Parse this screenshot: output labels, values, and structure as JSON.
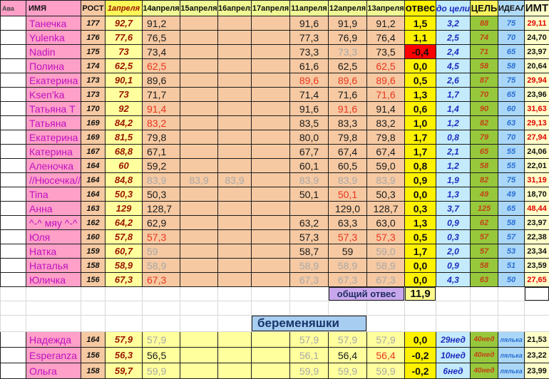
{
  "colors": {
    "pink": "#ffa0c8",
    "peach": "#f6c9a2",
    "yellow": "#fff200",
    "paleYellow": "#ffff9e",
    "lightBlue": "#c3ebfb",
    "green": "#97c83c",
    "idealBlue": "#aad7f7",
    "bmiBg": "#ffffc9",
    "purple": "#c9a7ec",
    "pregBlue": "#a7cdf0",
    "valueRed": "#e8351f",
    "valueGray": "#a8a8a8",
    "alertRed": "#ff0000"
  },
  "header": {
    "cols": [
      "Ава",
      "ИМЯ",
      "РОСТ",
      "1апреля",
      "14апреля",
      "15апреля",
      "16апреля",
      "17апреля",
      "11апреля",
      "12апреля",
      "13апреля",
      "отвес",
      "до цели",
      "ЦЕЛЬ",
      "ИДЕАЛ",
      "ИМТ"
    ]
  },
  "rows": [
    {
      "name": "Танечка",
      "height": "177",
      "apr1": "92,7",
      "dates": [
        [
          "91,2",
          "k"
        ],
        null,
        null,
        null,
        [
          "91,6",
          "k"
        ],
        [
          "91,9",
          "k"
        ],
        [
          "91,2",
          "k"
        ]
      ],
      "otves": "1,5",
      "alert": false,
      "to_goal": "3,2",
      "goal": "88",
      "ideal": "75",
      "bmi": "29,11",
      "bmi_red": true,
      "avatar": [
        "#b9ab92",
        "#7a7464"
      ]
    },
    {
      "name": "Yulenka",
      "height": "176",
      "apr1": "77,6",
      "dates": [
        [
          "76,5",
          "k"
        ],
        null,
        null,
        null,
        [
          "77,3",
          "k"
        ],
        [
          "76,9",
          "k"
        ],
        [
          "76,4",
          "k"
        ]
      ],
      "otves": "1,1",
      "alert": false,
      "to_goal": "2,5",
      "goal": "74",
      "ideal": "70",
      "bmi": "24,70",
      "bmi_red": false,
      "avatar": [
        "#e8b7c2",
        "#c22b3a"
      ]
    },
    {
      "name": "Nadin",
      "height": "175",
      "apr1": "73",
      "dates": [
        [
          "73,4",
          "k"
        ],
        null,
        null,
        null,
        [
          "73,3",
          "k"
        ],
        [
          "73,3",
          "g"
        ],
        [
          "73,5",
          "k"
        ]
      ],
      "otves": "-0,4",
      "alert": true,
      "to_goal": "2,4",
      "goal": "71",
      "ideal": "65",
      "bmi": "23,97",
      "bmi_red": false,
      "avatar": [
        "#9ec4e3",
        "#e8eef5"
      ]
    },
    {
      "name": "Полина",
      "height": "174",
      "apr1": "62,5",
      "dates": [
        [
          "62,5",
          "r"
        ],
        null,
        null,
        null,
        [
          "61,6",
          "k"
        ],
        [
          "62,5",
          "k"
        ],
        [
          "62,5",
          "r"
        ]
      ],
      "otves": "0,0",
      "alert": false,
      "to_goal": "4,5",
      "goal": "58",
      "ideal": "58",
      "bmi": "20,64",
      "bmi_red": false,
      "avatar": [
        "#7a1020",
        "#2b0d12"
      ]
    },
    {
      "name": "Екатерина",
      "height": "173",
      "apr1": "90,1",
      "dates": [
        [
          "89,6",
          "k"
        ],
        null,
        null,
        null,
        [
          "89,6",
          "r"
        ],
        [
          "89,6",
          "r"
        ],
        [
          "89,6",
          "r"
        ]
      ],
      "otves": "0,5",
      "alert": false,
      "to_goal": "2,6",
      "goal": "87",
      "ideal": "75",
      "bmi": "29,94",
      "bmi_red": true,
      "avatar": [
        "#f0cdbd",
        "#d8a090"
      ]
    },
    {
      "name": "Ksen'ka",
      "height": "173",
      "apr1": "73",
      "dates": [
        [
          "71,7",
          "k"
        ],
        null,
        null,
        null,
        [
          "71,4",
          "k"
        ],
        [
          "71,6",
          "k"
        ],
        [
          "71,6",
          "r"
        ]
      ],
      "otves": "1,3",
      "alert": false,
      "to_goal": "1,7",
      "goal": "70",
      "ideal": "65",
      "bmi": "23,96",
      "bmi_red": false,
      "avatar": [
        "#4a3a38",
        "#1c1416"
      ]
    },
    {
      "name": "Татьяна Т",
      "height": "170",
      "apr1": "92",
      "dates": [
        [
          "91,4",
          "r"
        ],
        null,
        null,
        null,
        [
          "91,6",
          "k"
        ],
        [
          "91,6",
          "r"
        ],
        [
          "91,4",
          "k"
        ]
      ],
      "otves": "0,6",
      "alert": false,
      "to_goal": "1,4",
      "goal": "90",
      "ideal": "60",
      "bmi": "31,63",
      "bmi_red": true,
      "avatar": [
        "#a33b2a",
        "#d98a6a"
      ]
    },
    {
      "name": "Татьяна",
      "height": "169",
      "apr1": "84,2",
      "dates": [
        [
          "83,2",
          "r"
        ],
        null,
        null,
        null,
        [
          "83,5",
          "k"
        ],
        [
          "83,3",
          "k"
        ],
        [
          "83,2",
          "k"
        ]
      ],
      "otves": "1,0",
      "alert": false,
      "to_goal": "1,2",
      "goal": "82",
      "ideal": "63",
      "bmi": "29,13",
      "bmi_red": true,
      "avatar": [
        "#d9d9d9",
        "#b0884a"
      ]
    },
    {
      "name": "Екатерина",
      "height": "169",
      "apr1": "81,5",
      "dates": [
        [
          "79,8",
          "k"
        ],
        null,
        null,
        null,
        [
          "80,0",
          "k"
        ],
        [
          "79,8",
          "k"
        ],
        [
          "79,8",
          "k"
        ]
      ],
      "otves": "1,7",
      "alert": false,
      "to_goal": "0,8",
      "goal": "79",
      "ideal": "70",
      "bmi": "27,94",
      "bmi_red": true,
      "avatar": [
        "#50555a",
        "#23262a"
      ]
    },
    {
      "name": "Катерина",
      "height": "167",
      "apr1": "68,8",
      "dates": [
        [
          "67,1",
          "k"
        ],
        null,
        null,
        null,
        [
          "67,7",
          "k"
        ],
        [
          "67,4",
          "k"
        ],
        [
          "67,4",
          "k"
        ]
      ],
      "otves": "1,7",
      "alert": false,
      "to_goal": "2,1",
      "goal": "65",
      "ideal": "55",
      "bmi": "24,06",
      "bmi_red": false,
      "avatar": [
        "#c9ccd0",
        "#8c3030"
      ]
    },
    {
      "name": "Аленочка",
      "height": "164",
      "apr1": "60",
      "dates": [
        [
          "59,2",
          "k"
        ],
        null,
        null,
        null,
        [
          "60,1",
          "k"
        ],
        [
          "60,5",
          "k"
        ],
        [
          "59,0",
          "k"
        ]
      ],
      "otves": "0,8",
      "alert": false,
      "to_goal": "1,2",
      "goal": "58",
      "ideal": "55",
      "bmi": "22,01",
      "bmi_red": false,
      "avatar": [
        "#2b2416",
        "#e09a28"
      ]
    },
    {
      "name": "//Нюсечка//",
      "height": "164",
      "apr1": "84,8",
      "dates": [
        [
          "83,9",
          "g"
        ],
        [
          "83,9",
          "g"
        ],
        [
          "83,9",
          "g"
        ],
        null,
        [
          "83,9",
          "g"
        ],
        [
          "83,9",
          "g"
        ],
        [
          "83,9",
          "g"
        ]
      ],
      "otves": "0,9",
      "alert": false,
      "to_goal": "1,9",
      "goal": "82",
      "ideal": "75",
      "bmi": "31,19",
      "bmi_red": true,
      "avatar": [
        "#3a3436",
        "#6e4a50"
      ]
    },
    {
      "name": "Tina",
      "height": "164",
      "apr1": "50,3",
      "dates": [
        [
          "50,3",
          "k"
        ],
        null,
        null,
        null,
        [
          "50,1",
          "k"
        ],
        [
          "50,1",
          "r"
        ],
        [
          "50,3",
          "k"
        ]
      ],
      "otves": "0,0",
      "alert": false,
      "to_goal": "1,3",
      "goal": "49",
      "ideal": "49",
      "bmi": "18,70",
      "bmi_red": false,
      "avatar": [
        "#4a7a6a",
        "#cfe3da"
      ]
    },
    {
      "name": "Анна",
      "height": "163",
      "apr1": "129",
      "dates": [
        [
          "128,7",
          "k"
        ],
        null,
        null,
        null,
        null,
        [
          "129,0",
          "k"
        ],
        [
          "128,7",
          "k"
        ]
      ],
      "otves": "0,3",
      "alert": false,
      "to_goal": "3,7",
      "goal": "125",
      "ideal": "65",
      "bmi": "48,44",
      "bmi_red": true,
      "avatar": [
        "#5a9e4a",
        "#2e6ea8"
      ]
    },
    {
      "name": "^-^ мяу ^-^",
      "height": "162",
      "apr1": "64,2",
      "dates": [
        [
          "62,9",
          "k"
        ],
        null,
        null,
        null,
        [
          "63,2",
          "k"
        ],
        [
          "63,3",
          "k"
        ],
        [
          "63,0",
          "k"
        ]
      ],
      "otves": "1,3",
      "alert": false,
      "to_goal": "0,9",
      "goal": "62",
      "ideal": "58",
      "bmi": "23,97",
      "bmi_red": false,
      "avatar": [
        "#3f6b2e",
        "#1e3a16"
      ]
    },
    {
      "name": "Юля",
      "height": "160",
      "apr1": "57,8",
      "dates": [
        [
          "57,3",
          "r"
        ],
        null,
        null,
        null,
        [
          "57,3",
          "k"
        ],
        [
          "57,3",
          "r"
        ],
        [
          "57,3",
          "r"
        ]
      ],
      "otves": "0,5",
      "alert": false,
      "to_goal": "0,3",
      "goal": "57",
      "ideal": "57",
      "bmi": "22,38",
      "bmi_red": false,
      "avatar": [
        "#b02a1a",
        "#5a1208"
      ]
    },
    {
      "name": "Натка",
      "height": "159",
      "apr1": "60,7",
      "dates": [
        [
          "59",
          "g"
        ],
        null,
        null,
        null,
        [
          "58,7",
          "k"
        ],
        [
          "59",
          "k"
        ],
        [
          "59,0",
          "g"
        ]
      ],
      "otves": "1,7",
      "alert": false,
      "to_goal": "2,0",
      "goal": "57",
      "ideal": "53",
      "bmi": "23,34",
      "bmi_red": false,
      "avatar": [
        "#d46a8a",
        "#4a7a3a"
      ]
    },
    {
      "name": "Наталья",
      "height": "158",
      "apr1": "58,9",
      "dates": [
        [
          "58,9",
          "g"
        ],
        null,
        null,
        null,
        [
          "58,9",
          "g"
        ],
        [
          "58,9",
          "g"
        ],
        [
          "58,9",
          "g"
        ]
      ],
      "otves": "0,0",
      "alert": false,
      "to_goal": "0,9",
      "goal": "58",
      "ideal": "51",
      "bmi": "23,59",
      "bmi_red": false,
      "avatar": [
        "#2e3a4a",
        "#c8cdd4"
      ]
    },
    {
      "name": "Юличка",
      "height": "156",
      "apr1": "67,3",
      "dates": [
        [
          "67,3",
          "r"
        ],
        null,
        null,
        null,
        [
          "67,3",
          "g"
        ],
        [
          "67,3",
          "g"
        ],
        [
          "67,3",
          "g"
        ]
      ],
      "otves": "0,0",
      "alert": false,
      "to_goal": "4,3",
      "goal": "63",
      "ideal": "50",
      "bmi": "27,65",
      "bmi_red": true,
      "avatar": [
        "#bfd8e8",
        "#caa26a"
      ]
    }
  ],
  "summary": {
    "label": "общий отвес",
    "value": "11,9"
  },
  "preg_section": {
    "title": "беременяшки",
    "rows": [
      {
        "name": "Надежда",
        "height": "164",
        "apr1": "57,9",
        "dates": [
          [
            "57,9",
            "g"
          ],
          null,
          null,
          null,
          [
            "57,9",
            "g"
          ],
          [
            "57,9",
            "g"
          ],
          [
            "57,9",
            "g"
          ]
        ],
        "otves": "0,0",
        "alert": false,
        "to_goal": "29нед",
        "goal": "40нед",
        "ideal": "лялька",
        "bmi": "21,53",
        "bmi_red": false,
        "avatar": [
          "#e0a23c",
          "#b8741c"
        ]
      },
      {
        "name": "Esperanza",
        "height": "156",
        "apr1": "56,3",
        "dates": [
          [
            "56,5",
            "k"
          ],
          null,
          null,
          null,
          [
            "56,1",
            "g"
          ],
          [
            "56,4",
            "k"
          ],
          [
            "56,4",
            "r"
          ]
        ],
        "otves": "-0,2",
        "alert": false,
        "to_goal": "10нед",
        "goal": "40нед",
        "ideal": "лялька",
        "bmi": "23,22",
        "bmi_red": false,
        "avatar": [
          "#5a0a14",
          "#1e0508"
        ]
      },
      {
        "name": "Ольга",
        "height": "158",
        "apr1": "59,7",
        "dates": [
          [
            "59,9",
            "g"
          ],
          null,
          null,
          null,
          [
            "59,9",
            "g"
          ],
          [
            "59,9",
            "g"
          ],
          [
            "59,9",
            "g"
          ]
        ],
        "otves": "-0,2",
        "alert": false,
        "to_goal": "6нед",
        "goal": "40нед",
        "ideal": "лялька",
        "bmi": "23,99",
        "bmi_red": false,
        "avatar": [
          "#d8b898",
          "#e8c8b0"
        ]
      }
    ]
  }
}
